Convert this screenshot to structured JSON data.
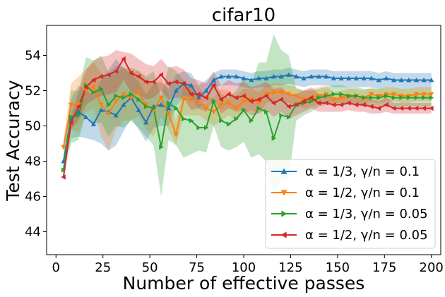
{
  "chart_data": {
    "type": "line",
    "title": "cifar10",
    "xlabel": "Number of effective passes",
    "ylabel": "Test Accuracy",
    "xlim": [
      -5,
      205
    ],
    "ylim": [
      42.7,
      55.7
    ],
    "xticks": [
      0,
      25,
      50,
      75,
      100,
      125,
      150,
      175,
      200
    ],
    "yticks": [
      44,
      46,
      48,
      50,
      52,
      54
    ],
    "grid": false,
    "legend_position": "lower-right",
    "x": [
      4,
      8,
      12,
      16,
      20,
      24,
      28,
      32,
      36,
      40,
      44,
      48,
      52,
      56,
      60,
      64,
      68,
      72,
      76,
      80,
      84,
      88,
      92,
      96,
      100,
      104,
      108,
      112,
      116,
      120,
      124,
      128,
      132,
      136,
      140,
      144,
      148,
      152,
      156,
      160,
      164,
      168,
      172,
      176,
      180,
      184,
      188,
      192,
      196,
      200
    ],
    "series": [
      {
        "name": "α = 1/3, γ/n = 0.1",
        "color": "#1f77b4",
        "marker": "triangle-up",
        "values": [
          48.0,
          50.4,
          50.8,
          50.5,
          50.1,
          50.9,
          50.8,
          50.6,
          51.2,
          51.6,
          50.9,
          50.2,
          51.1,
          51.2,
          51.0,
          52.0,
          52.4,
          52.3,
          51.6,
          52.0,
          52.6,
          52.8,
          52.8,
          52.8,
          52.7,
          52.6,
          52.7,
          52.7,
          52.8,
          52.8,
          52.9,
          52.8,
          52.7,
          52.8,
          52.8,
          52.8,
          52.7,
          52.7,
          52.7,
          52.7,
          52.7,
          52.7,
          52.6,
          52.7,
          52.6,
          52.6,
          52.6,
          52.6,
          52.6,
          52.6
        ],
        "lower": [
          47.6,
          49.3,
          49.4,
          49.3,
          49.2,
          49.0,
          48.6,
          48.9,
          49.7,
          50.4,
          49.8,
          49.1,
          49.9,
          50.0,
          50.0,
          51.1,
          51.7,
          51.6,
          51.0,
          51.4,
          52.2,
          52.3,
          52.3,
          52.3,
          52.2,
          52.1,
          52.2,
          52.2,
          52.3,
          52.3,
          52.4,
          52.3,
          52.2,
          52.3,
          52.3,
          52.3,
          52.2,
          52.2,
          52.2,
          52.2,
          52.2,
          52.2,
          52.1,
          52.2,
          52.1,
          52.1,
          52.1,
          52.1,
          52.1,
          52.1
        ],
        "upper": [
          48.4,
          51.5,
          52.3,
          52.0,
          51.7,
          52.6,
          53.2,
          53.8,
          53.3,
          53.0,
          52.5,
          51.8,
          52.4,
          52.5,
          52.1,
          52.9,
          53.1,
          53.0,
          52.3,
          52.6,
          53.0,
          53.2,
          53.2,
          53.2,
          53.1,
          53.0,
          53.1,
          53.1,
          53.2,
          53.2,
          53.3,
          53.2,
          53.1,
          53.2,
          53.2,
          53.2,
          53.1,
          53.1,
          53.1,
          53.1,
          53.1,
          53.1,
          53.0,
          53.1,
          53.0,
          53.0,
          53.0,
          53.0,
          53.0,
          53.0
        ]
      },
      {
        "name": "α = 1/2, γ/n = 0.1",
        "color": "#ff7f0e",
        "marker": "triangle-down",
        "values": [
          48.8,
          51.2,
          51.2,
          52.0,
          52.2,
          51.2,
          50.7,
          51.4,
          51.8,
          51.6,
          51.9,
          51.2,
          50.9,
          51.6,
          50.7,
          49.5,
          51.5,
          51.5,
          51.4,
          51.0,
          50.8,
          51.2,
          51.3,
          51.0,
          51.4,
          51.5,
          51.3,
          51.8,
          51.9,
          51.9,
          51.8,
          51.7,
          51.5,
          51.6,
          51.7,
          51.8,
          51.5,
          51.6,
          51.7,
          51.7,
          51.6,
          51.8,
          51.7,
          51.8,
          51.8,
          51.7,
          51.7,
          51.8,
          51.8,
          51.8
        ],
        "lower": [
          48.4,
          49.8,
          49.6,
          50.8,
          51.0,
          49.4,
          48.6,
          49.8,
          50.3,
          50.3,
          50.6,
          49.8,
          49.4,
          50.5,
          49.8,
          48.9,
          50.6,
          50.6,
          50.6,
          50.3,
          50.0,
          50.3,
          50.6,
          50.3,
          50.7,
          50.9,
          50.7,
          51.3,
          51.4,
          51.4,
          51.3,
          51.2,
          51.0,
          51.1,
          51.2,
          51.3,
          51.1,
          51.2,
          51.3,
          51.3,
          51.2,
          51.4,
          51.3,
          51.4,
          51.4,
          51.3,
          51.3,
          51.4,
          51.4,
          51.4
        ],
        "upper": [
          49.2,
          52.4,
          52.8,
          53.2,
          53.6,
          53.0,
          52.7,
          53.0,
          53.3,
          52.9,
          53.2,
          52.6,
          52.4,
          52.7,
          51.8,
          50.2,
          52.4,
          52.4,
          52.2,
          51.7,
          51.6,
          52.1,
          52.0,
          51.7,
          52.1,
          52.1,
          51.9,
          52.3,
          52.4,
          52.4,
          52.3,
          52.2,
          52.0,
          52.1,
          52.2,
          52.3,
          51.9,
          52.0,
          52.1,
          52.1,
          52.0,
          52.2,
          52.1,
          52.2,
          52.2,
          52.1,
          52.1,
          52.2,
          52.2,
          52.2
        ]
      },
      {
        "name": "α = 1/3, γ/n = 0.05",
        "color": "#2ca02c",
        "marker": "triangle-right",
        "values": [
          47.5,
          50.5,
          50.6,
          52.3,
          51.9,
          52.1,
          51.2,
          51.7,
          51.6,
          51.8,
          51.5,
          51.1,
          51.0,
          48.8,
          51.3,
          51.0,
          50.4,
          50.3,
          49.9,
          49.9,
          51.4,
          50.3,
          50.1,
          50.4,
          50.9,
          50.3,
          51.0,
          50.8,
          49.3,
          50.6,
          50.5,
          51.2,
          51.3,
          51.4,
          51.6,
          51.7,
          51.8,
          51.8,
          51.7,
          51.7,
          51.6,
          51.6,
          51.6,
          51.7,
          51.6,
          51.6,
          51.6,
          51.6,
          51.6,
          51.6
        ],
        "lower": [
          47.2,
          49.0,
          49.2,
          50.7,
          50.1,
          50.2,
          49.4,
          50.0,
          49.9,
          50.3,
          49.9,
          49.4,
          48.9,
          46.0,
          49.2,
          48.9,
          48.2,
          48.4,
          48.6,
          48.5,
          50.0,
          48.8,
          48.6,
          48.8,
          49.1,
          48.2,
          48.4,
          48.0,
          46.1,
          46.9,
          47.0,
          50.3,
          50.6,
          50.8,
          51.1,
          51.2,
          51.3,
          51.3,
          51.2,
          51.2,
          51.1,
          51.1,
          51.1,
          51.2,
          51.1,
          51.1,
          51.1,
          51.1,
          51.1,
          51.1
        ],
        "upper": [
          47.8,
          52.0,
          52.0,
          53.9,
          53.7,
          54.0,
          53.0,
          53.4,
          53.3,
          53.3,
          53.1,
          52.8,
          53.1,
          51.6,
          53.4,
          53.1,
          52.6,
          52.2,
          51.2,
          51.3,
          52.8,
          51.8,
          51.6,
          52.0,
          52.7,
          52.4,
          53.6,
          53.6,
          55.2,
          54.3,
          54.0,
          52.1,
          52.0,
          52.0,
          52.1,
          52.2,
          52.3,
          52.3,
          52.2,
          52.2,
          52.1,
          52.1,
          52.1,
          52.2,
          52.1,
          52.1,
          52.1,
          52.1,
          52.1,
          52.1
        ]
      },
      {
        "name": "α = 1/2, γ/n = 0.05",
        "color": "#d62728",
        "marker": "triangle-left",
        "values": [
          47.1,
          50.2,
          51.1,
          52.2,
          52.6,
          52.8,
          52.9,
          53.1,
          53.8,
          53.0,
          52.8,
          52.5,
          52.5,
          52.9,
          52.4,
          52.5,
          52.4,
          51.8,
          51.8,
          51.6,
          52.3,
          51.5,
          51.8,
          51.6,
          51.7,
          51.4,
          51.5,
          51.7,
          51.3,
          51.5,
          51.1,
          51.2,
          51.4,
          51.6,
          51.3,
          51.3,
          51.2,
          51.2,
          51.3,
          51.2,
          51.2,
          51.1,
          51.0,
          51.2,
          51.0,
          51.0,
          51.0,
          51.0,
          51.0,
          51.0
        ],
        "lower": [
          46.9,
          49.8,
          50.3,
          51.2,
          51.5,
          51.7,
          51.8,
          51.9,
          52.6,
          51.9,
          51.8,
          51.5,
          51.6,
          52.0,
          51.5,
          51.6,
          51.6,
          50.9,
          51.0,
          50.8,
          51.5,
          50.7,
          51.0,
          50.8,
          50.9,
          50.6,
          50.7,
          50.9,
          50.5,
          50.8,
          50.4,
          50.6,
          50.8,
          51.0,
          50.8,
          50.8,
          50.8,
          50.8,
          50.9,
          50.8,
          50.8,
          50.7,
          50.7,
          50.8,
          50.7,
          50.7,
          50.7,
          50.7,
          50.7,
          50.7
        ],
        "upper": [
          47.3,
          50.6,
          51.9,
          53.2,
          53.7,
          53.9,
          54.0,
          54.3,
          54.2,
          54.1,
          53.8,
          53.5,
          53.4,
          53.8,
          53.3,
          53.4,
          53.2,
          52.7,
          52.6,
          52.4,
          53.1,
          52.3,
          52.6,
          52.4,
          52.5,
          52.2,
          52.3,
          52.5,
          52.1,
          52.2,
          51.8,
          51.8,
          52.0,
          52.2,
          51.8,
          51.8,
          51.6,
          51.6,
          51.7,
          51.6,
          51.6,
          51.5,
          51.4,
          51.6,
          51.3,
          51.3,
          51.3,
          51.3,
          51.3,
          51.3
        ]
      }
    ]
  }
}
